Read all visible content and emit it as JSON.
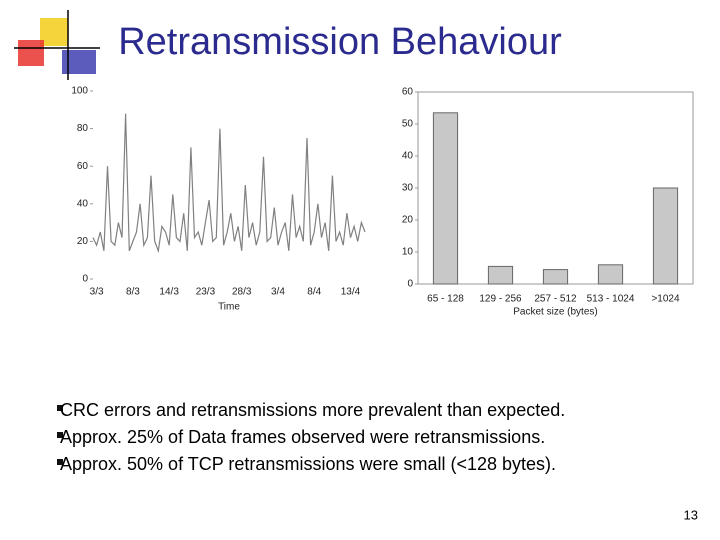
{
  "title": "Retransmission Behaviour",
  "bullets": [
    "CRC errors and retransmissions more prevalent than expected.",
    "Approx. 25% of Data frames observed were retransmissions.",
    "Approx. 50% of TCP retransmissions were small (<128 bytes)."
  ],
  "page_number": "13",
  "chart_data": [
    {
      "type": "line",
      "x_label": "Time",
      "color": "#808080",
      "categories": [
        null,
        "3/3",
        null,
        null,
        null,
        null,
        null,
        null,
        null,
        null,
        null,
        "8/3",
        null,
        null,
        null,
        null,
        null,
        null,
        null,
        null,
        null,
        "14/3",
        null,
        null,
        null,
        null,
        null,
        null,
        null,
        null,
        null,
        "23/3",
        null,
        null,
        null,
        null,
        null,
        null,
        null,
        null,
        null,
        "28/3",
        null,
        null,
        null,
        null,
        null,
        null,
        null,
        null,
        null,
        "3/4",
        null,
        null,
        null,
        null,
        null,
        null,
        null,
        null,
        null,
        "8/4",
        null,
        null,
        null,
        null,
        null,
        null,
        null,
        null,
        null,
        "13/4",
        null,
        null,
        null,
        null
      ],
      "values": [
        22,
        18,
        25,
        15,
        60,
        20,
        18,
        30,
        22,
        88,
        15,
        20,
        25,
        40,
        18,
        22,
        55,
        20,
        15,
        28,
        25,
        18,
        45,
        22,
        20,
        35,
        15,
        70,
        22,
        25,
        18,
        30,
        42,
        20,
        22,
        80,
        18,
        25,
        35,
        20,
        28,
        15,
        50,
        22,
        30,
        18,
        25,
        65,
        20,
        22,
        38,
        18,
        25,
        30,
        15,
        45,
        22,
        28,
        20,
        75,
        18,
        25,
        40,
        22,
        30,
        15,
        55,
        20,
        25,
        18,
        35,
        22,
        28,
        20,
        30,
        25
      ],
      "ylim": [
        0,
        100
      ],
      "yticks": [
        0,
        20,
        40,
        60,
        80,
        100
      ]
    },
    {
      "type": "bar",
      "x_label": "Packet size (bytes)",
      "color": "#c8c8c8",
      "categories": [
        "65 - 128",
        "129 - 256",
        "257 - 512",
        "513 - 1024",
        ">1024"
      ],
      "values": [
        53.5,
        5.5,
        4.5,
        6,
        30
      ],
      "ylim": [
        0,
        60
      ],
      "yticks": [
        0,
        10,
        20,
        30,
        40,
        50,
        60
      ]
    }
  ]
}
